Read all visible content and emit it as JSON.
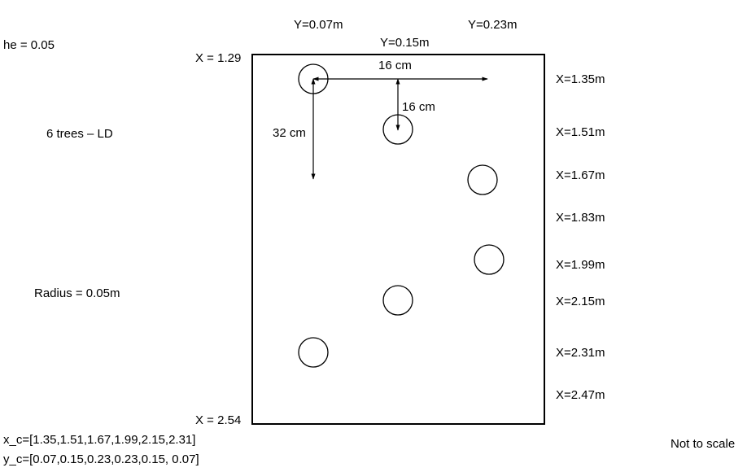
{
  "notes": {
    "he": "he = 0.05",
    "trees": "6 trees – LD",
    "radius": "Radius = 0.05m",
    "x_c": "x_c=[1.35,1.51,1.67,1.99,2.15,2.31]",
    "y_c": "y_c=[0.07,0.15,0.23,0.23,0.15, 0.07]",
    "scale": "Not to scale"
  },
  "boundary_labels": {
    "x_start": "X = 1.29",
    "x_end": "X = 2.54"
  },
  "y_labels": [
    "Y=0.07m",
    "Y=0.15m",
    "Y=0.23m"
  ],
  "x_labels": [
    "X=1.35m",
    "X=1.51m",
    "X=1.67m",
    "X=1.83m",
    "X=1.99m",
    "X=2.15m",
    "X=2.31m",
    "X=2.47m"
  ],
  "dimensions": {
    "horizontal": "16 cm",
    "vertical_short": "16 cm",
    "vertical_long": "32 cm"
  },
  "trees": [
    {
      "x": 1.35,
      "y": 0.07
    },
    {
      "x": 1.51,
      "y": 0.15
    },
    {
      "x": 1.67,
      "y": 0.23
    },
    {
      "x": 1.99,
      "y": 0.23
    },
    {
      "x": 2.15,
      "y": 0.15
    },
    {
      "x": 2.31,
      "y": 0.07
    }
  ]
}
